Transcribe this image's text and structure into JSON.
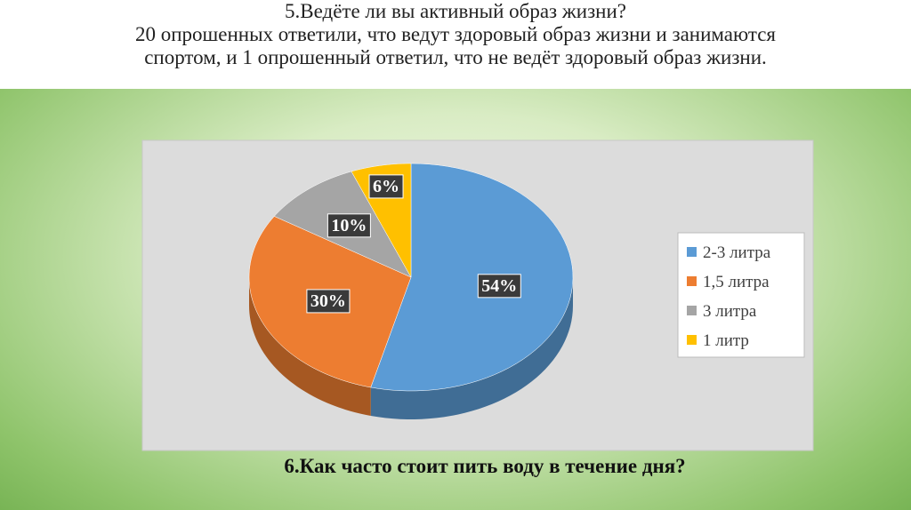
{
  "header": {
    "lines": [
      "5.Ведёте ли вы активный образ жизни?",
      "20 опрошенных ответили, что ведут здоровый образ жизни и занимаются",
      "спортом, и 1 опрошенный ответил, что не ведёт здоровый образ жизни."
    ]
  },
  "chart_data": {
    "type": "pie",
    "categories": [
      "2-3 литра",
      "1,5 литра",
      "3 литра",
      "1 литр"
    ],
    "values": [
      54,
      30,
      10,
      6
    ],
    "value_labels": [
      "54%",
      "30%",
      "10%",
      "6%"
    ],
    "colors": [
      "#5b9bd5",
      "#ed7d31",
      "#a5a5a5",
      "#ffc000"
    ],
    "legend": "right"
  },
  "question": "6.Как часто стоит пить воду в течение дня?"
}
